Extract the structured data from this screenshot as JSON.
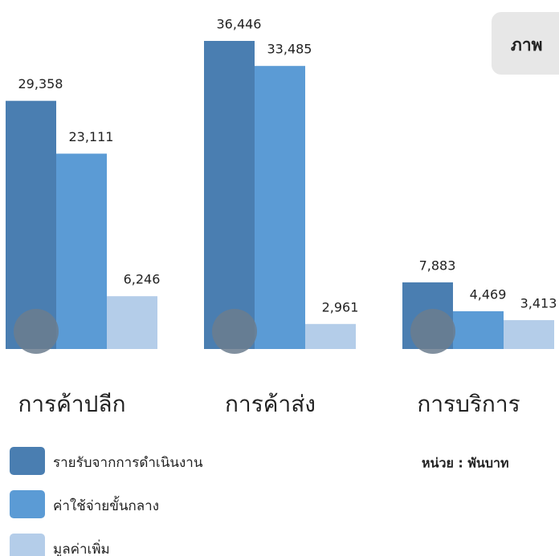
{
  "chart_data": {
    "type": "bar",
    "title": "ภาพ",
    "categories": [
      "การค้าปลีก",
      "การค้าส่ง",
      "การบริการ"
    ],
    "series": [
      {
        "name": "รายรับจากการดำเนินงาน",
        "color": "#4a7eb1",
        "values": [
          29358,
          36446,
          7883
        ],
        "value_labels": [
          "29,358",
          "36,446",
          "7,883"
        ]
      },
      {
        "name": "ค่าใช้จ่ายขั้นกลาง",
        "color": "#5b9bd5",
        "values": [
          23111,
          33485,
          4469
        ],
        "value_labels": [
          "23,111",
          "33,485",
          "4,469"
        ]
      },
      {
        "name": "มูลค่าเพิ่ม",
        "color": "#b4cde9",
        "values": [
          6246,
          2961,
          3413
        ],
        "value_labels": [
          "6,246",
          "2,961",
          "3,413"
        ]
      }
    ],
    "annotation": "หน่วย : พันบาท"
  }
}
